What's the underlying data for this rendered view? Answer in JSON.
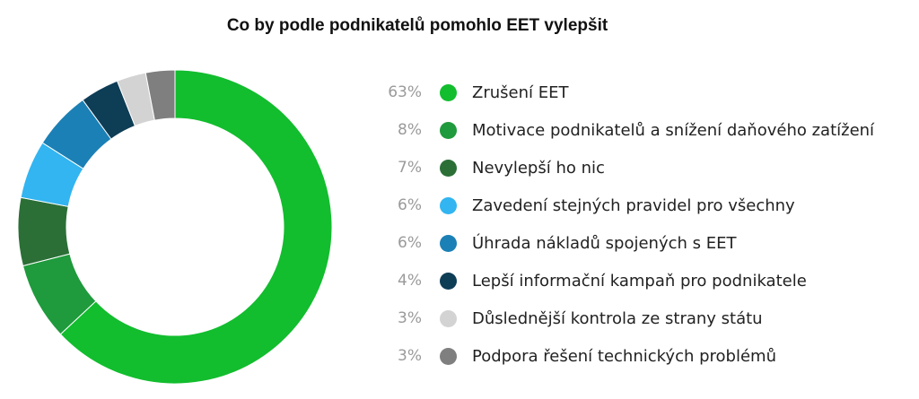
{
  "chart_data": {
    "type": "pie",
    "title": "Co by podle podnikatelů pomohlo EET vylepšit",
    "value_labels": [
      "63%",
      "8%",
      "7%",
      "6%",
      "6%",
      "4%",
      "3%",
      "3%"
    ],
    "categories": [
      "Zrušení EET",
      "Motivace podnikatelů a snížení daňového zatížení",
      "Nevylepší ho nic",
      "Zavedení stejných pravidel pro všechny",
      "Úhrada nákladů spojených s EET",
      "Lepší informační kampaň pro podnikatele",
      "Důslednější kontrola ze strany státu",
      "Podpora řešení technických problémů"
    ],
    "values": [
      63,
      8,
      7,
      6,
      6,
      4,
      3,
      3
    ],
    "colors": [
      "#12bd2e",
      "#1f9a3c",
      "#2b6f37",
      "#32b5f0",
      "#1b80b5",
      "#0e3d56",
      "#d3d3d3",
      "#7f7f7f"
    ],
    "legend_position": "right",
    "donut": true
  }
}
